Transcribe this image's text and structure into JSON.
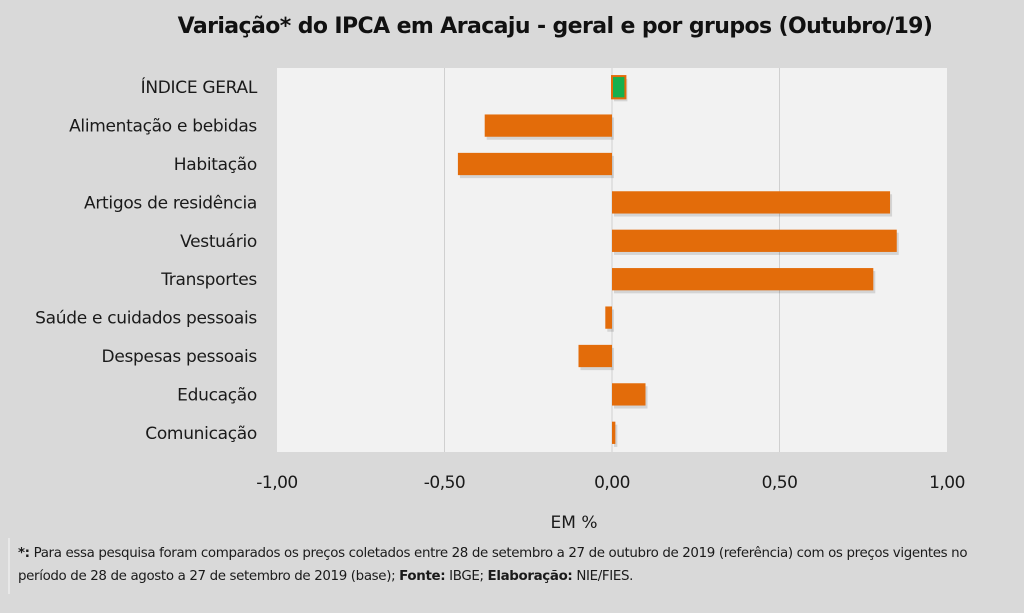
{
  "chart_data": {
    "type": "bar",
    "orientation": "horizontal",
    "title": "Variação*  do IPCA em Aracaju  - geral e por grupos (Outubro/19)",
    "xlabel": "EM %",
    "ylabel": "",
    "categories": [
      "ÍNDICE GERAL",
      "Alimentação e bebidas",
      "Habitação",
      "Artigos de residência",
      "Vestuário",
      "Transportes",
      "Saúde e cuidados pessoais",
      "Despesas pessoais",
      "Educação",
      "Comunicação"
    ],
    "values": [
      0.04,
      -0.38,
      -0.46,
      0.83,
      0.85,
      0.78,
      -0.02,
      -0.1,
      0.1,
      0.01
    ],
    "xlim": [
      -1.0,
      1.0
    ],
    "xticks": [
      -1.0,
      -0.5,
      0.0,
      0.5,
      1.0
    ],
    "xtick_labels": [
      "-1,00",
      "-0,50",
      "0,00",
      "0,50",
      "1,00"
    ],
    "grid": "vertical",
    "legend": "none",
    "colors": {
      "bar": "#e36c0a",
      "highlight": "#16b04e",
      "highlight_border": "#e36c0a",
      "plot_bg": "#f2f2f2",
      "page_bg": "#d9d9d9",
      "grid": "#d0d0d0"
    },
    "highlight_index": 0
  },
  "footnote": {
    "marker": "*:",
    "text1": " Para essa pesquisa foram comparados os preços coletados entre 28 de setembro a 27 de outubro de 2019 (referência) com os preços vigentes no período de 28 de agosto a 27 de setembro de 2019 (base); ",
    "source_label": "Fonte:",
    "source_value": " IBGE; ",
    "credit_label": "Elaboração:",
    "credit_value": " NIE/FIES."
  }
}
